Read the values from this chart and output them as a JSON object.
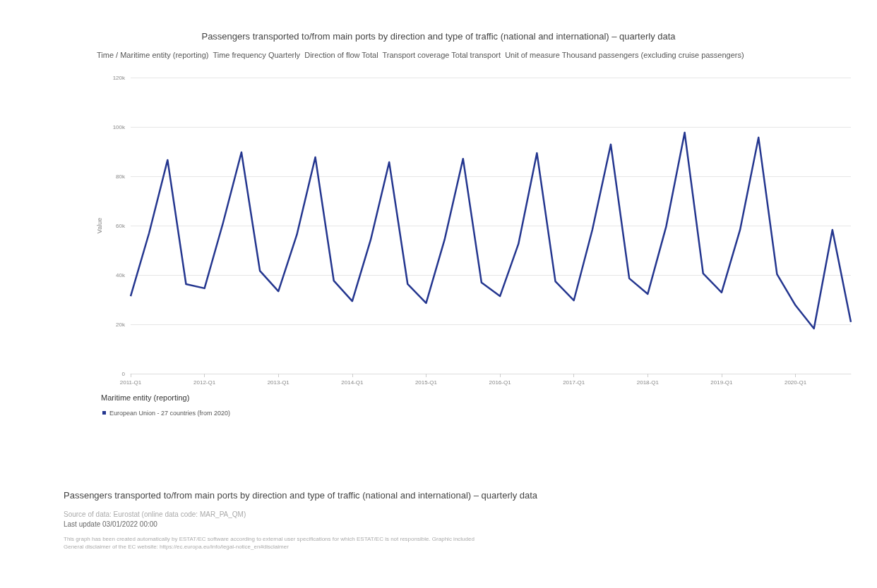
{
  "chart_data": {
    "type": "line",
    "title": "Passengers transported to/from main ports by direction and type of traffic (national and international) – quarterly data",
    "subtitle": "Time / Maritime entity (reporting)  Time frequency Quarterly  Direction of flow Total  Transport coverage Total transport  Unit of measure Thousand passengers (excluding cruise passengers)",
    "ylabel": "Value",
    "legend_title": "Maritime entity (reporting)",
    "categories": [
      "2011-Q1",
      null,
      null,
      null,
      "2012-Q1",
      null,
      null,
      null,
      "2013-Q1",
      null,
      null,
      null,
      "2014-Q1",
      null,
      null,
      null,
      "2015-Q1",
      null,
      null,
      null,
      "2016-Q1",
      null,
      null,
      null,
      "2017-Q1",
      null,
      null,
      null,
      "2018-Q1",
      null,
      null,
      null,
      "2019-Q1",
      null,
      null,
      null,
      "2020-Q1",
      null,
      null,
      null
    ],
    "series": [
      {
        "name": "European Union - 27 countries (from 2020)",
        "color": "#24368f",
        "values": [
          31400,
          57000,
          86600,
          36300,
          34600,
          61000,
          89700,
          41700,
          33400,
          56300,
          87700,
          37700,
          29400,
          54300,
          85700,
          36300,
          28600,
          54300,
          87100,
          36900,
          31400,
          52600,
          89400,
          37400,
          29700,
          58300,
          92900,
          38600,
          32300,
          59700,
          97700,
          40600,
          32900,
          58300,
          95700,
          40300,
          27700,
          18300,
          58300,
          20900
        ]
      }
    ],
    "ylim": [
      0,
      120000
    ],
    "yticks": [
      0,
      {
        "value": 20000,
        "label": "20k"
      },
      {
        "value": 40000,
        "label": "40k"
      },
      {
        "value": 60000,
        "label": "60k"
      },
      {
        "value": 80000,
        "label": "80k"
      },
      {
        "value": 100000,
        "label": "100k"
      },
      {
        "value": 120000,
        "label": "120k"
      }
    ],
    "grid": "y",
    "legend": "bottom left",
    "marker": "none",
    "line_style": "solid",
    "annotations": [
      "Passengers transported to/from main ports by direction and type of traffic (national and international) – quarterly data",
      "Source of data: Eurostat (online data code: MAR_PA_QM)",
      "Last update 03/01/2022 00:00",
      "This graph has been created automatically by ESTAT/EC software according to external user specifications for which ESTAT/EC is not responsible. Graphic included",
      "General disclaimer of the EC website: https://ec.europa.eu/info/legal-notice_en#disclaimer"
    ]
  }
}
